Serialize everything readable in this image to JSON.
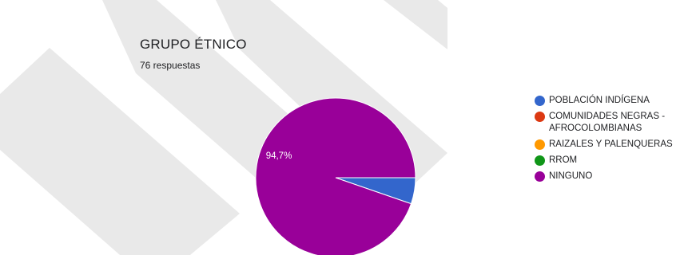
{
  "header": {
    "title": "GRUPO ÉTNICO",
    "subtitle": "76 respuestas"
  },
  "chart_data": {
    "type": "pie",
    "title": "GRUPO ÉTNICO",
    "subtitle": "76 respuestas",
    "categories": [
      "POBLACIÓN INDÍGENA",
      "COMUNIDADES NEGRAS - AFROCOLOMBIANAS",
      "RAIZALES Y PALENQUERAS",
      "RROM",
      "NINGUNO"
    ],
    "values": [
      5.3,
      0,
      0,
      0,
      94.7
    ],
    "colors": [
      "#3366cc",
      "#dc3912",
      "#ff9900",
      "#109618",
      "#990099"
    ],
    "data_labels": [
      "",
      "",
      "",
      "",
      "94,7%"
    ],
    "legend_position": "right"
  },
  "legend": {
    "items": [
      {
        "label_line1": "POBLACIÓN INDÍGENA",
        "label_line2": "",
        "color": "#3366cc"
      },
      {
        "label_line1": "COMUNIDADES NEGRAS -",
        "label_line2": "AFROCOLOMBIANAS",
        "color": "#dc3912"
      },
      {
        "label_line1": "RAIZALES Y PALENQUERAS",
        "label_line2": "",
        "color": "#ff9900"
      },
      {
        "label_line1": "RROM",
        "label_line2": "",
        "color": "#109618"
      },
      {
        "label_line1": "NINGUNO",
        "label_line2": "",
        "color": "#990099"
      }
    ]
  }
}
